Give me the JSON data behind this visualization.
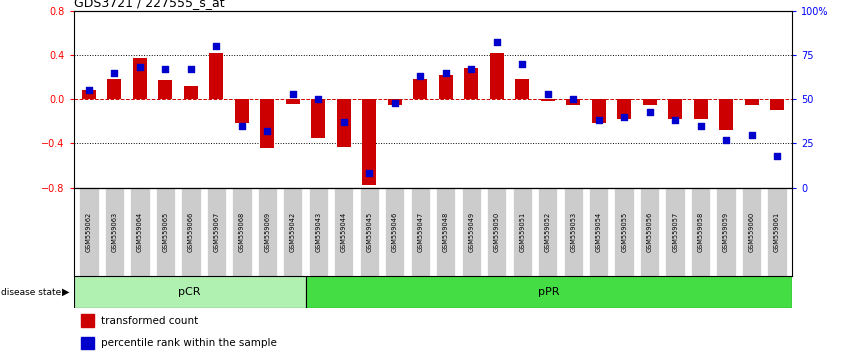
{
  "title": "GDS3721 / 227555_s_at",
  "samples": [
    "GSM559062",
    "GSM559063",
    "GSM559064",
    "GSM559065",
    "GSM559066",
    "GSM559067",
    "GSM559068",
    "GSM559069",
    "GSM559042",
    "GSM559043",
    "GSM559044",
    "GSM559045",
    "GSM559046",
    "GSM559047",
    "GSM559048",
    "GSM559049",
    "GSM559050",
    "GSM559051",
    "GSM559052",
    "GSM559053",
    "GSM559054",
    "GSM559055",
    "GSM559056",
    "GSM559057",
    "GSM559058",
    "GSM559059",
    "GSM559060",
    "GSM559061"
  ],
  "transformed_count": [
    0.08,
    0.18,
    0.37,
    0.17,
    0.12,
    0.42,
    -0.22,
    -0.44,
    -0.04,
    -0.35,
    -0.43,
    -0.78,
    -0.05,
    0.18,
    0.22,
    0.28,
    0.42,
    0.18,
    -0.02,
    -0.05,
    -0.22,
    -0.18,
    -0.05,
    -0.18,
    -0.18,
    -0.28,
    -0.05,
    -0.1
  ],
  "percentile_rank": [
    55,
    65,
    68,
    67,
    67,
    80,
    35,
    32,
    53,
    50,
    37,
    8,
    48,
    63,
    65,
    67,
    82,
    70,
    53,
    50,
    38,
    40,
    43,
    38,
    35,
    27,
    30,
    18
  ],
  "pCR_count": 9,
  "bar_color": "#cc0000",
  "dot_color": "#0000cc",
  "pCR_color": "#b0f0b0",
  "pPR_color": "#44dd44",
  "label_bg_color": "#cccccc",
  "ylim": [
    -0.8,
    0.8
  ],
  "yticks_left": [
    -0.8,
    -0.4,
    0.0,
    0.4,
    0.8
  ],
  "yticks_right": [
    0,
    25,
    50,
    75,
    100
  ],
  "legend_red": "transformed count",
  "legend_blue": "percentile rank within the sample"
}
